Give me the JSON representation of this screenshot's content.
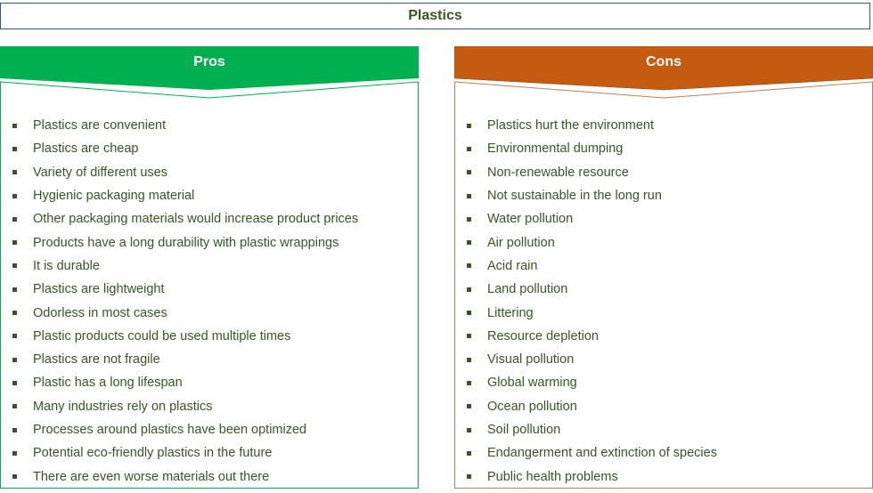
{
  "title": "Plastics",
  "colors": {
    "pros": "#00b050",
    "cons": "#c55a11",
    "text": "#375623",
    "title_border": "#2f5597"
  },
  "pros": {
    "label": "Pros",
    "items": [
      "Plastics are convenient",
      "Plastics are cheap",
      "Variety of different uses",
      "Hygienic packaging material",
      "Other packaging materials would increase product prices",
      "Products have a long durability with plastic wrappings",
      "It is durable",
      "Plastics are lightweight",
      "Odorless in most cases",
      "Plastic products could be used multiple times",
      "Plastics are not fragile",
      "Plastic has a long lifespan",
      "Many industries rely on plastics",
      "Processes around plastics have been optimized",
      "Potential eco-friendly plastics in the future",
      "There are even worse materials out there"
    ]
  },
  "cons": {
    "label": "Cons",
    "items": [
      "Plastics hurt the environment",
      "Environmental dumping",
      "Non-renewable resource",
      "Not sustainable in the long run",
      "Water pollution",
      "Air pollution",
      "Acid rain",
      "Land pollution",
      "Littering",
      "Resource depletion",
      "Visual pollution",
      "Global warming",
      "Ocean pollution",
      "Soil pollution",
      "Endangerment and extinction of species",
      "Public health problems"
    ]
  }
}
